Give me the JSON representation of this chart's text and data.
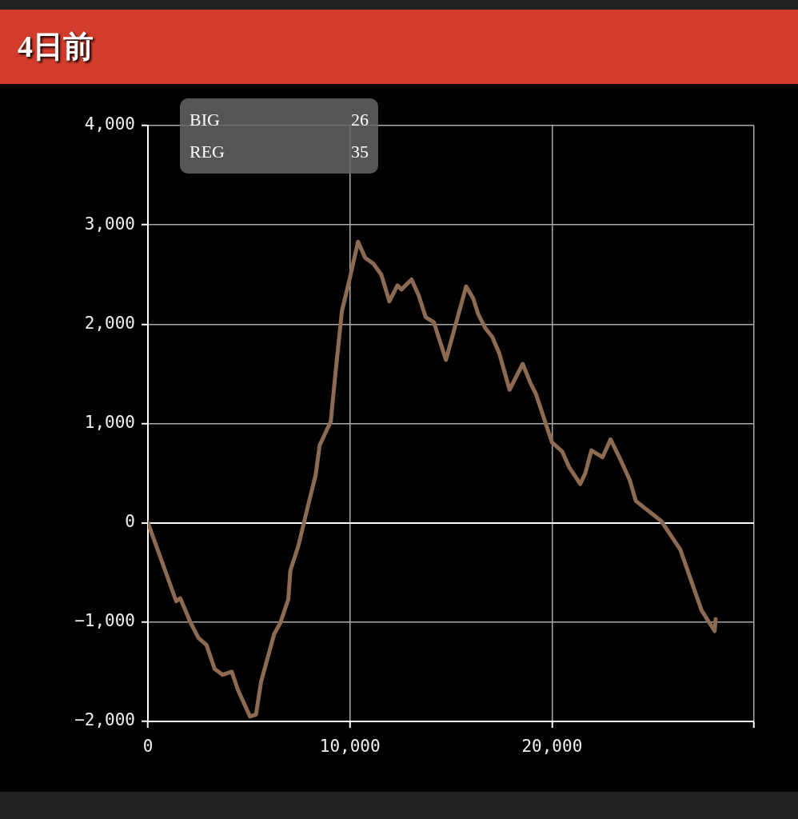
{
  "chart_data": {
    "type": "line",
    "title": "4日前",
    "x": [
      0,
      1400,
      1600,
      2100,
      2500,
      2900,
      3300,
      3700,
      4150,
      4450,
      5050,
      5350,
      5600,
      6250,
      6550,
      6950,
      7050,
      7450,
      7850,
      8300,
      8500,
      9050,
      9300,
      9600,
      10000,
      10400,
      10750,
      11150,
      11550,
      11950,
      12350,
      12550,
      13050,
      13400,
      13750,
      14150,
      14750,
      15750,
      16100,
      16350,
      16700,
      17050,
      17400,
      17900,
      18550,
      18950,
      19200,
      20000,
      20500,
      20850,
      21400,
      21650,
      21950,
      22500,
      22900,
      23450,
      23850,
      24150,
      25400,
      26350,
      27400,
      28050,
      28100
    ],
    "series": [
      {
        "color": "#8c6b52",
        "values": [
          0,
          -790,
          -760,
          -1000,
          -1160,
          -1230,
          -1470,
          -1530,
          -1500,
          -1680,
          -1950,
          -1930,
          -1600,
          -1120,
          -1010,
          -770,
          -480,
          -230,
          110,
          480,
          780,
          1020,
          1540,
          2130,
          2470,
          2830,
          2670,
          2610,
          2500,
          2230,
          2390,
          2350,
          2450,
          2290,
          2070,
          2020,
          1640,
          2380,
          2260,
          2100,
          1960,
          1870,
          1700,
          1340,
          1600,
          1400,
          1300,
          810,
          720,
          560,
          390,
          500,
          730,
          660,
          840,
          610,
          430,
          220,
          20,
          -270,
          -880,
          -1090,
          -970
        ]
      }
    ],
    "xlim": [
      0,
      30000
    ],
    "xticks": [
      {
        "value": 0,
        "label": "0"
      },
      {
        "value": 10000,
        "label": "10,000"
      },
      {
        "value": 20000,
        "label": "20,000"
      },
      {
        "value": 30000,
        "label": null
      }
    ],
    "ylim": [
      -2000,
      4000
    ],
    "yticks": [
      {
        "value": -2000,
        "label": "−2,000"
      },
      {
        "value": -1000,
        "label": "−1,000"
      },
      {
        "value": 0,
        "label": "0"
      },
      {
        "value": 1000,
        "label": "1,000"
      },
      {
        "value": 2000,
        "label": "2,000"
      },
      {
        "value": 3000,
        "label": "3,000"
      },
      {
        "value": 4000,
        "label": "4,000"
      }
    ],
    "grid": true,
    "legend": false,
    "marker": "none",
    "line_style": "solid",
    "annotations": [
      "BIG",
      "26",
      "REG",
      "35"
    ]
  }
}
